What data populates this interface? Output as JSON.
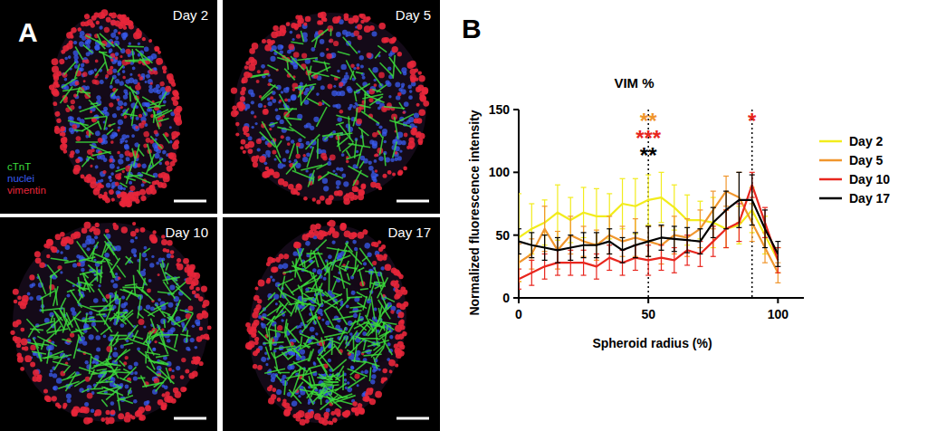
{
  "panels": {
    "a": "A",
    "b": "B"
  },
  "image_panels": {
    "days": [
      "Day 2",
      "Day 5",
      "Day 10",
      "Day 17"
    ],
    "channels": [
      {
        "name": "cTnT",
        "color": "#3ddc3d"
      },
      {
        "name": "nuclei",
        "color": "#3a5cf0"
      },
      {
        "name": "vimentin",
        "color": "#e8263a"
      }
    ]
  },
  "chart_data": {
    "type": "line",
    "title": "VIM %",
    "x_label": "Spheroid radius (%)",
    "y_label": "Normalized fluorescence intensity",
    "x": [
      0,
      5,
      10,
      15,
      20,
      25,
      30,
      35,
      40,
      45,
      50,
      55,
      60,
      65,
      70,
      75,
      80,
      85,
      90,
      95,
      100
    ],
    "series": [
      {
        "name": "Day 2",
        "color": "#f2ec1c",
        "values": [
          48,
          55,
          60,
          68,
          62,
          68,
          65,
          65,
          75,
          73,
          78,
          80,
          72,
          62,
          62,
          60,
          55,
          58,
          70,
          50,
          30
        ],
        "errors": [
          35,
          20,
          18,
          22,
          18,
          20,
          22,
          18,
          20,
          22,
          20,
          20,
          18,
          20,
          15,
          20,
          15,
          15,
          18,
          15,
          10
        ]
      },
      {
        "name": "Day 5",
        "color": "#f0962d",
        "values": [
          28,
          35,
          55,
          38,
          50,
          45,
          42,
          50,
          45,
          48,
          45,
          42,
          50,
          48,
          55,
          70,
          85,
          80,
          60,
          40,
          20
        ],
        "errors": [
          15,
          12,
          18,
          15,
          15,
          12,
          12,
          15,
          12,
          15,
          12,
          15,
          15,
          15,
          15,
          15,
          12,
          20,
          15,
          12,
          8
        ]
      },
      {
        "name": "Day 10",
        "color": "#e8261e",
        "values": [
          15,
          20,
          25,
          28,
          28,
          28,
          25,
          32,
          28,
          32,
          30,
          32,
          30,
          38,
          35,
          45,
          55,
          60,
          90,
          60,
          30
        ],
        "errors": [
          8,
          10,
          10,
          10,
          10,
          10,
          10,
          10,
          10,
          10,
          12,
          10,
          10,
          12,
          10,
          12,
          15,
          15,
          10,
          12,
          10
        ]
      },
      {
        "name": "Day 17",
        "color": "#000000",
        "values": [
          45,
          42,
          40,
          38,
          40,
          42,
          42,
          45,
          38,
          42,
          45,
          48,
          47,
          46,
          45,
          60,
          70,
          78,
          78,
          55,
          35
        ],
        "errors": [
          10,
          10,
          10,
          10,
          10,
          10,
          10,
          10,
          10,
          10,
          12,
          10,
          10,
          10,
          10,
          12,
          15,
          22,
          20,
          15,
          10
        ]
      }
    ],
    "annotations": [
      {
        "x": 50,
        "text": "**",
        "color": "#f0962d"
      },
      {
        "x": 50,
        "text": "***",
        "color": "#e8261e"
      },
      {
        "x": 50,
        "text": "**",
        "color": "#000000"
      },
      {
        "x": 90,
        "text": "*",
        "color": "#e8261e"
      }
    ],
    "xlim": [
      0,
      110
    ],
    "ylim": [
      0,
      150
    ],
    "xticks": [
      0,
      50,
      100
    ],
    "yticks": [
      0,
      50,
      100,
      150
    ],
    "grid": false,
    "legend": "right"
  }
}
